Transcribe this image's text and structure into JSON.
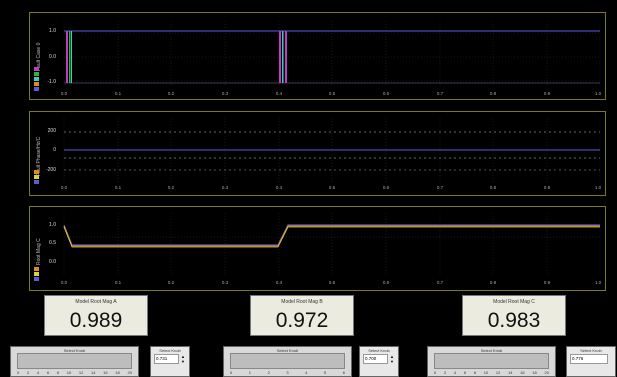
{
  "graphs": [
    {
      "id": "fault-case",
      "ylabel": "Fault Case 0",
      "yticks": [
        "1.0",
        "0.0",
        "-1.0"
      ],
      "xticks": [
        "0.0",
        "0.1",
        "0.2",
        "0.3",
        "0.4",
        "0.5",
        "0.6",
        "0.7",
        "0.8",
        "0.9",
        "1.0"
      ]
    },
    {
      "id": "fault-phase",
      "ylabel": "Fault Phase/Hz/C",
      "yticks": [
        "200",
        "0",
        "-200"
      ],
      "xticks": [
        "0.0",
        "0.1",
        "0.2",
        "0.3",
        "0.4",
        "0.5",
        "0.6",
        "0.7",
        "0.8",
        "0.9",
        "1.0"
      ]
    },
    {
      "id": "root-mag",
      "ylabel": "Root Mag C",
      "yticks": [
        "1.0",
        "0.5",
        "0.0"
      ],
      "xticks": [
        "0.0",
        "0.1",
        "0.2",
        "0.3",
        "0.4",
        "0.5",
        "0.6",
        "0.7",
        "0.8",
        "0.9",
        "1.0"
      ]
    }
  ],
  "indicators": [
    {
      "title": "Model Root Mag A",
      "value": "0.989"
    },
    {
      "title": "Model Root Mag B",
      "value": "0.972"
    },
    {
      "title": "Model Root Mag C",
      "value": "0.983"
    }
  ],
  "knobs": [
    {
      "title": "Select Knob",
      "ticks": [
        "0",
        "2",
        "4",
        "6",
        "8",
        "10",
        "12",
        "14",
        "16",
        "18",
        "20"
      ]
    },
    {
      "title": "Select Knob",
      "ticks": [
        "0",
        "1",
        "2",
        "3",
        "4",
        "5",
        "6"
      ]
    },
    {
      "title": "Select Knob",
      "ticks": [
        "0",
        "2",
        "4",
        "6",
        "8",
        "10",
        "12",
        "14",
        "16",
        "18",
        "20"
      ]
    }
  ],
  "edits": [
    {
      "title": "Select Knob",
      "value": "0.731"
    },
    {
      "title": "Select Knob",
      "value": "0.700"
    },
    {
      "title": "Select Knob",
      "value": "0.776"
    }
  ],
  "colors": {
    "panel_border": "#7a7a1e",
    "grid": "#3a3a3a",
    "trace_blue": "#5b5bd6",
    "trace_magenta": "#c23ac2",
    "trace_green": "#2fb52f",
    "trace_cyan": "#3fc9c9",
    "trace_orange": "#e08a1a",
    "trace_yellow": "#d8d040"
  }
}
